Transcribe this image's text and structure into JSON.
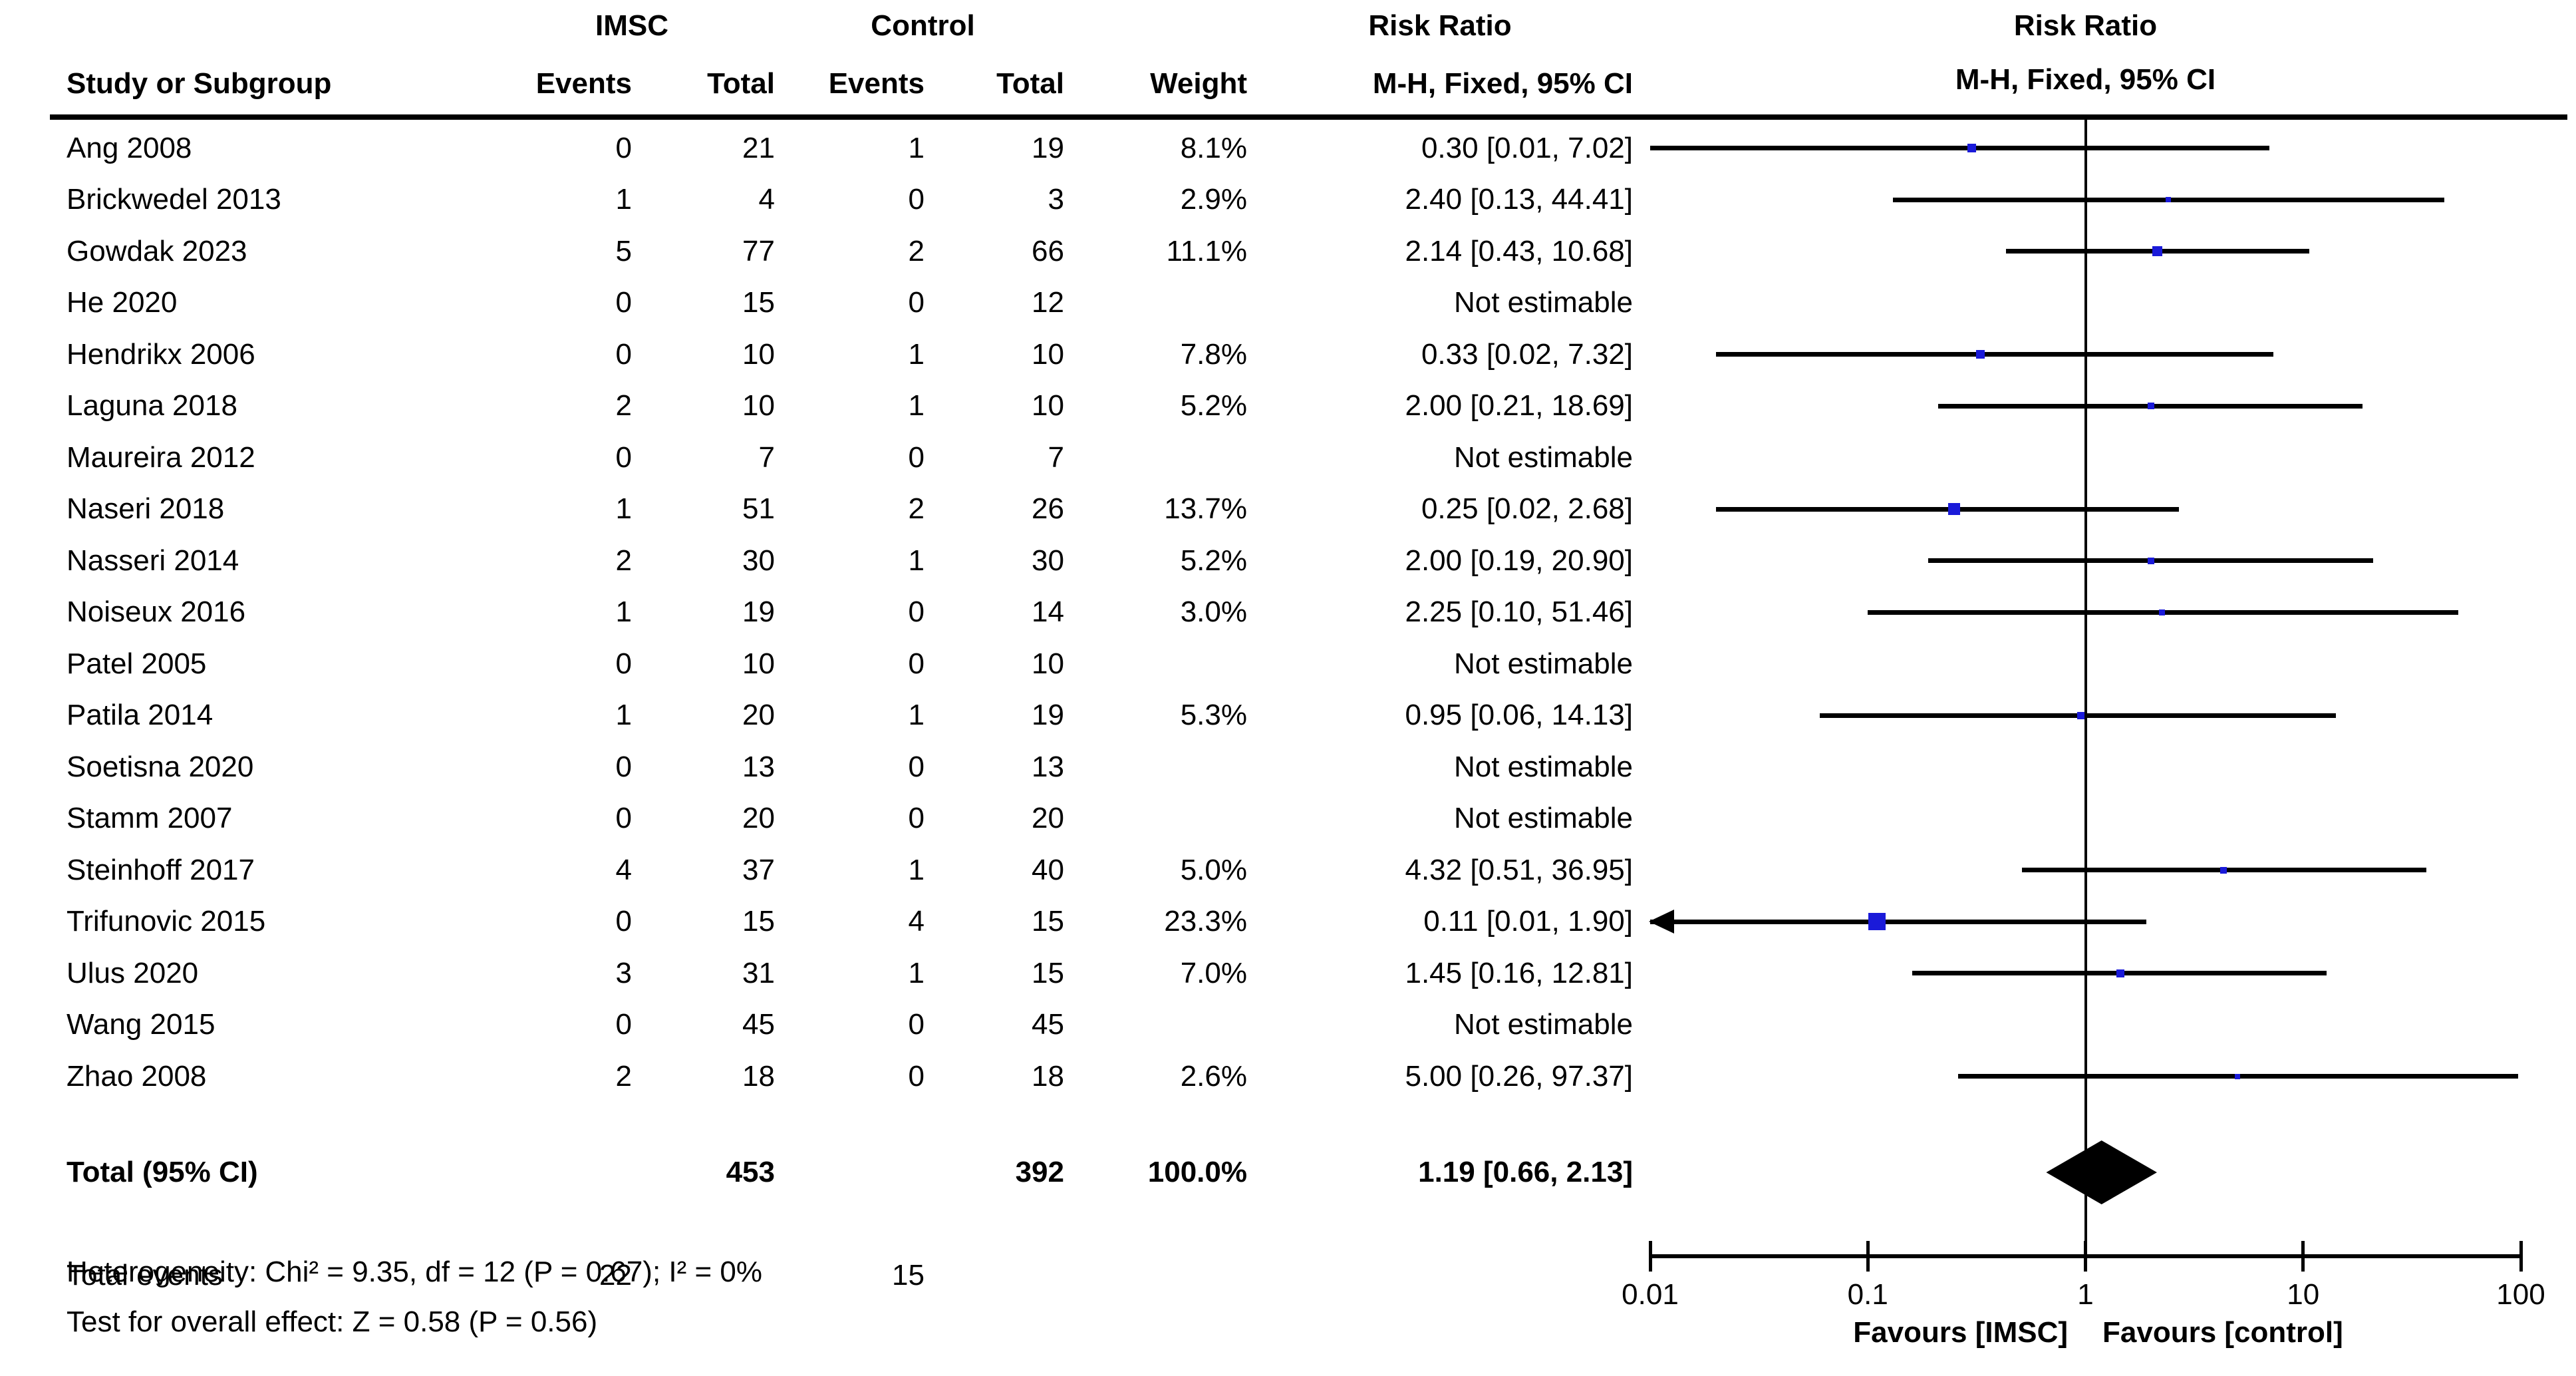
{
  "header": {
    "study": "Study or Subgroup",
    "group1": "IMSC",
    "group2": "Control",
    "events": "Events",
    "total": "Total",
    "weight": "Weight",
    "risk_ratio": "Risk Ratio",
    "method": "M-H, Fixed, 95% CI"
  },
  "footer": {
    "heterogeneity": "Heterogeneity: Chi² = 9.35, df = 12 (P = 0.67); I² = 0%",
    "overall_effect": "Test for overall effect: Z = 0.58 (P = 0.56)"
  },
  "colors": {
    "marker": "#1a1ad9",
    "line": "#000000",
    "diamond": "#000000"
  },
  "chart_data": {
    "type": "forest",
    "effect_measure": "Risk Ratio",
    "method": "M-H, Fixed, 95% CI",
    "x_axis": {
      "scale": "log",
      "min": 0.01,
      "max": 100,
      "ticks": [
        {
          "value": 0.01,
          "label": "0.01"
        },
        {
          "value": 0.1,
          "label": "0.1"
        },
        {
          "value": 1,
          "label": "1"
        },
        {
          "value": 10,
          "label": "10"
        },
        {
          "value": 100,
          "label": "100"
        }
      ],
      "favours_left": "Favours [IMSC]",
      "favours_right": "Favours [control]"
    },
    "studies": [
      {
        "name": "Ang 2008",
        "e1": 0,
        "t1": 21,
        "e2": 1,
        "t2": 19,
        "weight": "8.1%",
        "weight_pct": 8.1,
        "rr": 0.3,
        "ci_low": 0.01,
        "ci_high": 7.02,
        "label": "0.30 [0.01, 7.02]",
        "arrow_low": false
      },
      {
        "name": "Brickwedel 2013",
        "e1": 1,
        "t1": 4,
        "e2": 0,
        "t2": 3,
        "weight": "2.9%",
        "weight_pct": 2.9,
        "rr": 2.4,
        "ci_low": 0.13,
        "ci_high": 44.41,
        "label": "2.40 [0.13, 44.41]",
        "arrow_low": false
      },
      {
        "name": "Gowdak 2023",
        "e1": 5,
        "t1": 77,
        "e2": 2,
        "t2": 66,
        "weight": "11.1%",
        "weight_pct": 11.1,
        "rr": 2.14,
        "ci_low": 0.43,
        "ci_high": 10.68,
        "label": "2.14 [0.43, 10.68]",
        "arrow_low": false
      },
      {
        "name": "He 2020",
        "e1": 0,
        "t1": 15,
        "e2": 0,
        "t2": 12,
        "weight": "",
        "weight_pct": null,
        "rr": null,
        "ci_low": null,
        "ci_high": null,
        "label": "Not estimable",
        "arrow_low": false
      },
      {
        "name": "Hendrikx 2006",
        "e1": 0,
        "t1": 10,
        "e2": 1,
        "t2": 10,
        "weight": "7.8%",
        "weight_pct": 7.8,
        "rr": 0.33,
        "ci_low": 0.02,
        "ci_high": 7.32,
        "label": "0.33 [0.02, 7.32]",
        "arrow_low": false
      },
      {
        "name": "Laguna 2018",
        "e1": 2,
        "t1": 10,
        "e2": 1,
        "t2": 10,
        "weight": "5.2%",
        "weight_pct": 5.2,
        "rr": 2.0,
        "ci_low": 0.21,
        "ci_high": 18.69,
        "label": "2.00 [0.21, 18.69]",
        "arrow_low": false
      },
      {
        "name": "Maureira 2012",
        "e1": 0,
        "t1": 7,
        "e2": 0,
        "t2": 7,
        "weight": "",
        "weight_pct": null,
        "rr": null,
        "ci_low": null,
        "ci_high": null,
        "label": "Not estimable",
        "arrow_low": false
      },
      {
        "name": "Naseri 2018",
        "e1": 1,
        "t1": 51,
        "e2": 2,
        "t2": 26,
        "weight": "13.7%",
        "weight_pct": 13.7,
        "rr": 0.25,
        "ci_low": 0.02,
        "ci_high": 2.68,
        "label": "0.25 [0.02, 2.68]",
        "arrow_low": false
      },
      {
        "name": "Nasseri 2014",
        "e1": 2,
        "t1": 30,
        "e2": 1,
        "t2": 30,
        "weight": "5.2%",
        "weight_pct": 5.2,
        "rr": 2.0,
        "ci_low": 0.19,
        "ci_high": 20.9,
        "label": "2.00 [0.19, 20.90]",
        "arrow_low": false
      },
      {
        "name": "Noiseux 2016",
        "e1": 1,
        "t1": 19,
        "e2": 0,
        "t2": 14,
        "weight": "3.0%",
        "weight_pct": 3.0,
        "rr": 2.25,
        "ci_low": 0.1,
        "ci_high": 51.46,
        "label": "2.25 [0.10, 51.46]",
        "arrow_low": false
      },
      {
        "name": "Patel 2005",
        "e1": 0,
        "t1": 10,
        "e2": 0,
        "t2": 10,
        "weight": "",
        "weight_pct": null,
        "rr": null,
        "ci_low": null,
        "ci_high": null,
        "label": "Not estimable",
        "arrow_low": false
      },
      {
        "name": "Patila 2014",
        "e1": 1,
        "t1": 20,
        "e2": 1,
        "t2": 19,
        "weight": "5.3%",
        "weight_pct": 5.3,
        "rr": 0.95,
        "ci_low": 0.06,
        "ci_high": 14.13,
        "label": "0.95 [0.06, 14.13]",
        "arrow_low": false
      },
      {
        "name": "Soetisna 2020",
        "e1": 0,
        "t1": 13,
        "e2": 0,
        "t2": 13,
        "weight": "",
        "weight_pct": null,
        "rr": null,
        "ci_low": null,
        "ci_high": null,
        "label": "Not estimable",
        "arrow_low": false
      },
      {
        "name": "Stamm 2007",
        "e1": 0,
        "t1": 20,
        "e2": 0,
        "t2": 20,
        "weight": "",
        "weight_pct": null,
        "rr": null,
        "ci_low": null,
        "ci_high": null,
        "label": "Not estimable",
        "arrow_low": false
      },
      {
        "name": "Steinhoff 2017",
        "e1": 4,
        "t1": 37,
        "e2": 1,
        "t2": 40,
        "weight": "5.0%",
        "weight_pct": 5.0,
        "rr": 4.32,
        "ci_low": 0.51,
        "ci_high": 36.95,
        "label": "4.32 [0.51, 36.95]",
        "arrow_low": false
      },
      {
        "name": "Trifunovic 2015",
        "e1": 0,
        "t1": 15,
        "e2": 4,
        "t2": 15,
        "weight": "23.3%",
        "weight_pct": 23.3,
        "rr": 0.11,
        "ci_low": 0.01,
        "ci_high": 1.9,
        "label": "0.11 [0.01, 1.90]",
        "arrow_low": true
      },
      {
        "name": "Ulus 2020",
        "e1": 3,
        "t1": 31,
        "e2": 1,
        "t2": 15,
        "weight": "7.0%",
        "weight_pct": 7.0,
        "rr": 1.45,
        "ci_low": 0.16,
        "ci_high": 12.81,
        "label": "1.45 [0.16, 12.81]",
        "arrow_low": false
      },
      {
        "name": "Wang 2015",
        "e1": 0,
        "t1": 45,
        "e2": 0,
        "t2": 45,
        "weight": "",
        "weight_pct": null,
        "rr": null,
        "ci_low": null,
        "ci_high": null,
        "label": "Not estimable",
        "arrow_low": false
      },
      {
        "name": "Zhao 2008",
        "e1": 2,
        "t1": 18,
        "e2": 0,
        "t2": 18,
        "weight": "2.6%",
        "weight_pct": 2.6,
        "rr": 5.0,
        "ci_low": 0.26,
        "ci_high": 97.37,
        "label": "5.00 [0.26, 97.37]",
        "arrow_low": false
      }
    ],
    "total": {
      "name": "Total (95% CI)",
      "t1": 453,
      "t2": 392,
      "weight": "100.0%",
      "rr": 1.19,
      "ci_low": 0.66,
      "ci_high": 2.13,
      "label": "1.19 [0.66, 2.13]"
    },
    "total_events": {
      "label": "Total events",
      "e1": 22,
      "e2": 15
    }
  }
}
